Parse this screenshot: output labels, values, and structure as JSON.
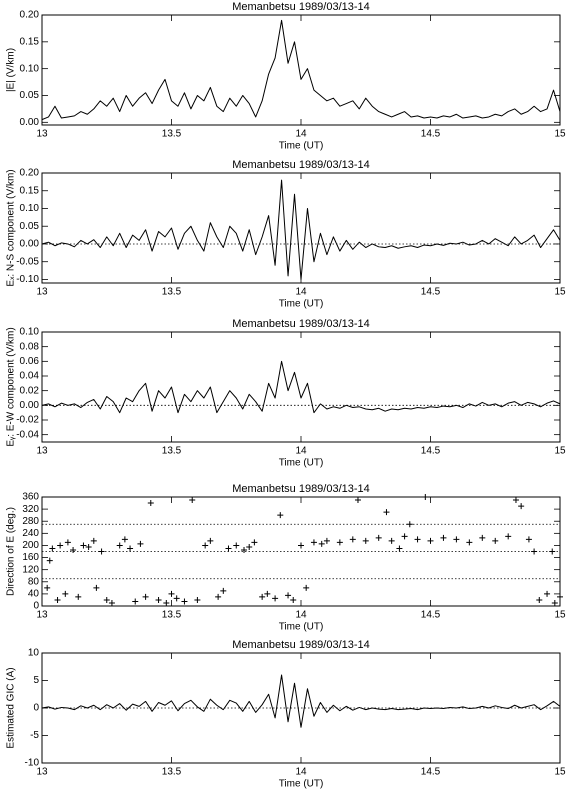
{
  "chart_data": [
    {
      "type": "line",
      "title": "Memanbetsu 1989/03/13-14",
      "xlabel": "Time (UT)",
      "ylabel": "|E| (V/km)",
      "color": "#000000",
      "x": [
        13,
        13.025,
        13.05,
        13.075,
        13.1,
        13.125,
        13.15,
        13.175,
        13.2,
        13.225,
        13.25,
        13.275,
        13.3,
        13.325,
        13.35,
        13.375,
        13.4,
        13.425,
        13.45,
        13.475,
        13.5,
        13.525,
        13.55,
        13.575,
        13.6,
        13.625,
        13.65,
        13.675,
        13.7,
        13.725,
        13.75,
        13.775,
        13.8,
        13.825,
        13.85,
        13.875,
        13.9,
        13.925,
        13.95,
        13.975,
        14,
        14.025,
        14.05,
        14.075,
        14.1,
        14.125,
        14.15,
        14.175,
        14.2,
        14.225,
        14.25,
        14.275,
        14.3,
        14.325,
        14.35,
        14.375,
        14.4,
        14.425,
        14.45,
        14.475,
        14.5,
        14.525,
        14.55,
        14.575,
        14.6,
        14.625,
        14.65,
        14.675,
        14.7,
        14.725,
        14.75,
        14.775,
        14.8,
        14.825,
        14.85,
        14.875,
        14.9,
        14.925,
        14.95,
        14.975,
        15
      ],
      "values": [
        0.005,
        0.01,
        0.03,
        0.008,
        0.01,
        0.012,
        0.02,
        0.015,
        0.025,
        0.04,
        0.03,
        0.045,
        0.02,
        0.05,
        0.03,
        0.045,
        0.055,
        0.035,
        0.06,
        0.08,
        0.04,
        0.03,
        0.055,
        0.025,
        0.05,
        0.04,
        0.065,
        0.03,
        0.02,
        0.045,
        0.03,
        0.05,
        0.035,
        0.01,
        0.04,
        0.09,
        0.12,
        0.19,
        0.11,
        0.15,
        0.08,
        0.1,
        0.06,
        0.05,
        0.04,
        0.045,
        0.03,
        0.035,
        0.04,
        0.025,
        0.045,
        0.03,
        0.02,
        0.015,
        0.01,
        0.015,
        0.02,
        0.01,
        0.012,
        0.008,
        0.01,
        0.008,
        0.012,
        0.01,
        0.015,
        0.008,
        0.01,
        0.012,
        0.008,
        0.01,
        0.015,
        0.012,
        0.02,
        0.025,
        0.015,
        0.02,
        0.03,
        0.02,
        0.025,
        0.06,
        0.02
      ],
      "xlim": [
        13,
        15
      ],
      "xticks": [
        13,
        13.5,
        14,
        14.5,
        15
      ],
      "ylim": [
        -0.005,
        0.2
      ],
      "yticks": [
        {
          "value": 0,
          "label": "0.00"
        },
        0.05,
        {
          "value": 0.1,
          "label": "0.10"
        },
        0.15,
        {
          "value": 0.2,
          "label": "0.20"
        }
      ],
      "hlines": []
    },
    {
      "type": "line",
      "title": "Memanbetsu 1989/03/13-14",
      "xlabel": "Time (UT)",
      "ylabel": "Eₓ: N-S component (V/km)",
      "color": "#000000",
      "x": [
        13,
        13.025,
        13.05,
        13.075,
        13.1,
        13.125,
        13.15,
        13.175,
        13.2,
        13.225,
        13.25,
        13.275,
        13.3,
        13.325,
        13.35,
        13.375,
        13.4,
        13.425,
        13.45,
        13.475,
        13.5,
        13.525,
        13.55,
        13.575,
        13.6,
        13.625,
        13.65,
        13.675,
        13.7,
        13.725,
        13.75,
        13.775,
        13.8,
        13.825,
        13.85,
        13.875,
        13.9,
        13.925,
        13.95,
        13.975,
        14,
        14.025,
        14.05,
        14.075,
        14.1,
        14.125,
        14.15,
        14.175,
        14.2,
        14.225,
        14.25,
        14.275,
        14.3,
        14.325,
        14.35,
        14.375,
        14.4,
        14.425,
        14.45,
        14.475,
        14.5,
        14.525,
        14.55,
        14.575,
        14.6,
        14.625,
        14.65,
        14.675,
        14.7,
        14.725,
        14.75,
        14.775,
        14.8,
        14.825,
        14.85,
        14.875,
        14.9,
        14.925,
        14.95,
        14.975,
        15
      ],
      "values": [
        0,
        0.005,
        -0.005,
        0.003,
        0,
        -0.008,
        0.01,
        0,
        0.012,
        -0.01,
        0.02,
        -0.005,
        0.03,
        -0.01,
        0.025,
        0.01,
        0.04,
        -0.02,
        0.035,
        0.02,
        0.045,
        -0.015,
        0.03,
        0.05,
        0.01,
        -0.02,
        0.06,
        0.02,
        -0.01,
        0.05,
        0.03,
        -0.02,
        0.04,
        -0.03,
        0.02,
        0.08,
        -0.06,
        0.18,
        -0.09,
        0.14,
        -0.1,
        0.1,
        -0.05,
        0.03,
        -0.03,
        0.02,
        -0.02,
        0.01,
        -0.015,
        0.005,
        -0.01,
        0,
        -0.008,
        -0.01,
        -0.005,
        -0.012,
        -0.008,
        -0.005,
        -0.01,
        -0.003,
        -0.005,
        0,
        -0.004,
        0.002,
        0,
        0.005,
        -0.003,
        0,
        0.01,
        0,
        0.015,
        0.005,
        -0.005,
        0.02,
        0,
        0.01,
        0.025,
        -0.01,
        0.015,
        0.04,
        0.01
      ],
      "xlim": [
        13,
        15
      ],
      "xticks": [
        13,
        13.5,
        14,
        14.5,
        15
      ],
      "ylim": [
        -0.11,
        0.2
      ],
      "yticks": [
        {
          "value": -0.1,
          "label": "-0.10"
        },
        -0.05,
        {
          "value": 0,
          "label": "0.00"
        },
        0.05,
        {
          "value": 0.1,
          "label": "0.10"
        },
        0.15,
        {
          "value": 0.2,
          "label": "0.20"
        }
      ],
      "hlines": [
        0
      ]
    },
    {
      "type": "line",
      "title": "Memanbetsu 1989/03/13-14",
      "xlabel": "Time (UT)",
      "ylabel": "Eᵧ: E-W component (V/km)",
      "color": "#000000",
      "x": [
        13,
        13.025,
        13.05,
        13.075,
        13.1,
        13.125,
        13.15,
        13.175,
        13.2,
        13.225,
        13.25,
        13.275,
        13.3,
        13.325,
        13.35,
        13.375,
        13.4,
        13.425,
        13.45,
        13.475,
        13.5,
        13.525,
        13.55,
        13.575,
        13.6,
        13.625,
        13.65,
        13.675,
        13.7,
        13.725,
        13.75,
        13.775,
        13.8,
        13.825,
        13.85,
        13.875,
        13.9,
        13.925,
        13.95,
        13.975,
        14,
        14.025,
        14.05,
        14.075,
        14.1,
        14.125,
        14.15,
        14.175,
        14.2,
        14.225,
        14.25,
        14.275,
        14.3,
        14.325,
        14.35,
        14.375,
        14.4,
        14.425,
        14.45,
        14.475,
        14.5,
        14.525,
        14.55,
        14.575,
        14.6,
        14.625,
        14.65,
        14.675,
        14.7,
        14.725,
        14.75,
        14.775,
        14.8,
        14.825,
        14.85,
        14.875,
        14.9,
        14.925,
        14.95,
        14.975,
        15
      ],
      "values": [
        0,
        0.002,
        -0.002,
        0.003,
        0,
        0.002,
        -0.003,
        0.004,
        0.008,
        -0.005,
        0.012,
        0.005,
        -0.01,
        0.01,
        0.005,
        0.02,
        0.03,
        -0.008,
        0.02,
        0.01,
        0.025,
        -0.01,
        0.015,
        0.005,
        0.02,
        0.01,
        0.025,
        -0.01,
        0.005,
        0.02,
        0.01,
        -0.005,
        0.015,
        0.005,
        -0.008,
        0.03,
        0.01,
        0.06,
        0.02,
        0.045,
        0.01,
        0.03,
        -0.01,
        0.002,
        -0.005,
        -0.002,
        -0.004,
        0,
        -0.003,
        -0.002,
        -0.005,
        -0.006,
        -0.004,
        -0.008,
        -0.005,
        -0.006,
        -0.004,
        -0.005,
        -0.003,
        -0.004,
        -0.002,
        -0.003,
        -0.001,
        -0.002,
        0,
        -0.003,
        0.002,
        -0.001,
        0.004,
        0,
        0.002,
        -0.002,
        0.003,
        0.005,
        0,
        0.004,
        0.002,
        -0.002,
        0.003,
        0.006,
        0.002
      ],
      "xlim": [
        13,
        15
      ],
      "xticks": [
        13,
        13.5,
        14,
        14.5,
        15
      ],
      "ylim": [
        -0.05,
        0.1
      ],
      "yticks": [
        -0.04,
        -0.02,
        {
          "value": 0,
          "label": "0.00"
        },
        0.02,
        0.04,
        0.06,
        0.08,
        {
          "value": 0.1,
          "label": "0.10"
        }
      ],
      "hlines": [
        0
      ]
    },
    {
      "type": "scatter",
      "title": "Memanbetsu 1989/03/13-14",
      "xlabel": "Time (UT)",
      "ylabel": "Direction of E (deg.)",
      "color": "#000000",
      "x": [
        13.02,
        13.03,
        13.04,
        13.06,
        13.07,
        13.09,
        13.1,
        13.12,
        13.14,
        13.16,
        13.18,
        13.2,
        13.21,
        13.23,
        13.25,
        13.27,
        13.3,
        13.32,
        13.34,
        13.36,
        13.38,
        13.4,
        13.42,
        13.45,
        13.48,
        13.5,
        13.52,
        13.55,
        13.58,
        13.6,
        13.63,
        13.65,
        13.68,
        13.7,
        13.72,
        13.75,
        13.78,
        13.8,
        13.82,
        13.85,
        13.87,
        13.9,
        13.92,
        13.95,
        13.97,
        14,
        14.02,
        14.05,
        14.08,
        14.1,
        14.15,
        14.2,
        14.22,
        14.25,
        14.3,
        14.33,
        14.35,
        14.38,
        14.4,
        14.42,
        14.45,
        14.48,
        14.5,
        14.55,
        14.6,
        14.65,
        14.7,
        14.75,
        14.8,
        14.83,
        14.85,
        14.88,
        14.9,
        14.92,
        14.95,
        14.97,
        14.98,
        15
      ],
      "values": [
        60,
        150,
        190,
        20,
        200,
        40,
        210,
        185,
        30,
        200,
        195,
        215,
        60,
        180,
        20,
        10,
        200,
        220,
        190,
        15,
        205,
        30,
        340,
        20,
        10,
        40,
        25,
        15,
        350,
        20,
        200,
        215,
        30,
        50,
        190,
        200,
        185,
        195,
        210,
        30,
        40,
        25,
        300,
        35,
        20,
        200,
        60,
        210,
        205,
        215,
        210,
        220,
        350,
        215,
        225,
        310,
        215,
        190,
        230,
        270,
        220,
        360,
        215,
        225,
        220,
        210,
        225,
        215,
        230,
        350,
        330,
        220,
        180,
        20,
        40,
        180,
        10,
        30
      ],
      "xlim": [
        13,
        15
      ],
      "xticks": [
        13,
        13.5,
        14,
        14.5,
        15
      ],
      "ylim": [
        0,
        360
      ],
      "yticks": [
        0,
        40,
        80,
        120,
        160,
        200,
        240,
        280,
        320,
        360
      ],
      "hlines": [
        90,
        180,
        270
      ]
    },
    {
      "type": "line",
      "title": "Memanbetsu 1989/03/13-14",
      "xlabel": "Time (UT)",
      "ylabel": "Estimated GIC (A)",
      "color": "#000000",
      "x": [
        13,
        13.025,
        13.05,
        13.075,
        13.1,
        13.125,
        13.15,
        13.175,
        13.2,
        13.225,
        13.25,
        13.275,
        13.3,
        13.325,
        13.35,
        13.375,
        13.4,
        13.425,
        13.45,
        13.475,
        13.5,
        13.525,
        13.55,
        13.575,
        13.6,
        13.625,
        13.65,
        13.675,
        13.7,
        13.725,
        13.75,
        13.775,
        13.8,
        13.825,
        13.85,
        13.875,
        13.9,
        13.925,
        13.95,
        13.975,
        14,
        14.025,
        14.05,
        14.075,
        14.1,
        14.125,
        14.15,
        14.175,
        14.2,
        14.225,
        14.25,
        14.275,
        14.3,
        14.325,
        14.35,
        14.375,
        14.4,
        14.425,
        14.45,
        14.475,
        14.5,
        14.525,
        14.55,
        14.575,
        14.6,
        14.625,
        14.65,
        14.675,
        14.7,
        14.725,
        14.75,
        14.775,
        14.8,
        14.825,
        14.85,
        14.875,
        14.9,
        14.925,
        14.95,
        14.975,
        15
      ],
      "values": [
        0,
        0.2,
        -0.2,
        0.1,
        0,
        -0.3,
        0.4,
        0,
        0.5,
        -0.3,
        0.6,
        0,
        0.8,
        -0.4,
        0.7,
        0.3,
        1.2,
        -0.6,
        1,
        0.5,
        1.3,
        -0.5,
        0.8,
        1.4,
        0.2,
        -0.6,
        1.6,
        0.5,
        -0.3,
        1.4,
        0.9,
        -0.6,
        1.2,
        -0.8,
        0.6,
        2.5,
        -1.8,
        6,
        -2.5,
        4.5,
        -3.5,
        3.5,
        -1.5,
        1,
        -0.8,
        0.5,
        -0.5,
        0.3,
        -0.4,
        0.1,
        -0.3,
        0,
        -0.2,
        -0.3,
        -0.1,
        -0.3,
        -0.2,
        -0.1,
        -0.3,
        0,
        -0.1,
        0,
        -0.1,
        0.1,
        0,
        0.2,
        -0.1,
        0,
        0.3,
        0,
        0.4,
        0.1,
        -0.1,
        0.5,
        0,
        0.3,
        0.6,
        -0.3,
        0.4,
        1.2,
        0.3
      ],
      "xlim": [
        13,
        15
      ],
      "xticks": [
        13,
        13.5,
        14,
        14.5,
        15
      ],
      "ylim": [
        -10,
        10
      ],
      "yticks": [
        -10,
        -5,
        0,
        5,
        10
      ],
      "hlines": [
        0
      ]
    }
  ]
}
